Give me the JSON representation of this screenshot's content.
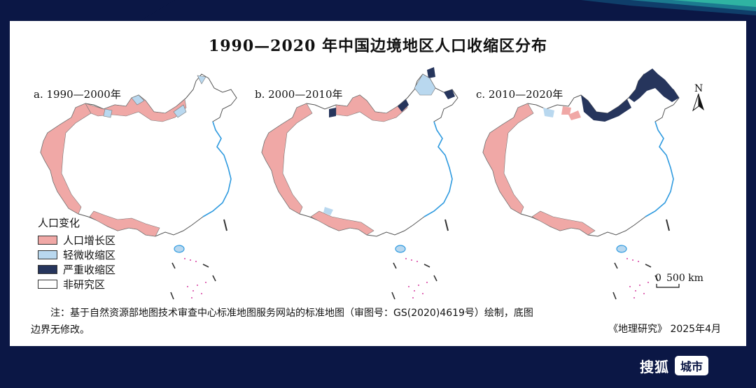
{
  "title": "1990—2020 年中国边境地区人口收缩区分布",
  "maps": [
    {
      "label": "a. 1990—2000年"
    },
    {
      "label": "b. 2000—2010年"
    },
    {
      "label": "c. 2010—2020年"
    }
  ],
  "legend": {
    "title": "人口变化",
    "items": [
      {
        "label": "人口增长区",
        "color": "#f0a8a6"
      },
      {
        "label": "轻微收缩区",
        "color": "#b9d8ef"
      },
      {
        "label": "严重收缩区",
        "color": "#26355c"
      },
      {
        "label": "非研究区",
        "color": "#ffffff"
      }
    ]
  },
  "compass": "N",
  "scale": {
    "zero": "0",
    "label": "500 km"
  },
  "note": {
    "line1": "注：基于自然资源部地图技术审查中心标准地图服务网站的标准地图（审图号：GS(2020)4619号）绘制，底图",
    "line2": "边界无修改。"
  },
  "source": "《地理研究》 2025年4月",
  "brand": {
    "logo": "搜狐",
    "chip": "城市"
  },
  "colors": {
    "coast": "#2f9be0",
    "islands": "#d63fa0",
    "border": "#555555"
  }
}
